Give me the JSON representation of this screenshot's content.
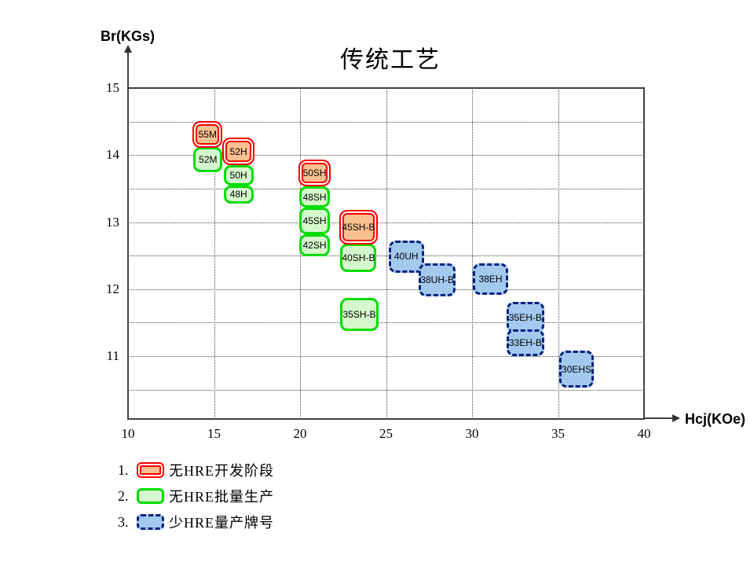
{
  "title": "传统工艺",
  "axes": {
    "x_label": "Hcj(KOe)",
    "y_label": "Br(KGs)",
    "x_ticks": [
      10,
      15,
      20,
      25,
      30,
      35,
      40
    ],
    "y_ticks": [
      15,
      14,
      13,
      12,
      11
    ]
  },
  "legend": {
    "items": [
      {
        "num": "1.",
        "label": "无HRE开发阶段",
        "category": "dev"
      },
      {
        "num": "2.",
        "label": "无HRE批量生产",
        "category": "mass"
      },
      {
        "num": "3.",
        "label": "少HRE量产牌号",
        "category": "low_hre"
      }
    ]
  },
  "colors": {
    "dev_fill": "#FAC090",
    "dev_border": "#FF0000",
    "mass_fill": "#D4F7CC",
    "mass_border": "#00DD00",
    "low_fill": "#A3C9EE",
    "low_border": "#002080"
  },
  "chart_data": {
    "type": "scatter",
    "title": "传统工艺",
    "xlabel": "Hcj(KOe)",
    "ylabel": "Br(KGs)",
    "xlim": [
      10,
      40
    ],
    "ylim": [
      10,
      15
    ],
    "grid": "dotted; vertical every 5 KOe, horizontal every 0.5 KGs",
    "legend_position": "below-left",
    "series": [
      {
        "name": "无HRE开发阶段",
        "grades": [
          "55M",
          "52H",
          "50SH",
          "45SH-B"
        ]
      },
      {
        "name": "无HRE批量生产",
        "grades": [
          "52M",
          "50H",
          "48H",
          "48SH",
          "45SH",
          "42SH",
          "40SH-B",
          "35SH-B"
        ]
      },
      {
        "name": "少HRE量产牌号",
        "grades": [
          "40UH",
          "38UH-B",
          "38EH",
          "35EH-B",
          "33EH-B",
          "30EHS"
        ]
      }
    ],
    "grades": [
      {
        "name": "52M",
        "category": "mass",
        "hcj": [
          13.8,
          15.5
        ],
        "br": [
          13.74,
          14.12
        ]
      },
      {
        "name": "55M",
        "category": "dev",
        "hcj": [
          13.75,
          15.5
        ],
        "br": [
          14.11,
          14.51
        ]
      },
      {
        "name": "50H",
        "category": "mass",
        "hcj": [
          15.55,
          17.3
        ],
        "br": [
          13.55,
          13.85
        ]
      },
      {
        "name": "48H",
        "category": "mass",
        "hcj": [
          15.55,
          17.3
        ],
        "br": [
          13.28,
          13.55
        ]
      },
      {
        "name": "52H",
        "category": "dev",
        "hcj": [
          15.5,
          17.35
        ],
        "br": [
          13.85,
          14.26
        ]
      },
      {
        "name": "48SH",
        "category": "mass",
        "hcj": [
          19.95,
          21.75
        ],
        "br": [
          13.22,
          13.53
        ]
      },
      {
        "name": "45SH",
        "category": "mass",
        "hcj": [
          19.95,
          21.75
        ],
        "br": [
          12.82,
          13.22
        ]
      },
      {
        "name": "42SH",
        "category": "mass",
        "hcj": [
          19.95,
          21.75
        ],
        "br": [
          12.49,
          12.82
        ]
      },
      {
        "name": "50SH",
        "category": "dev",
        "hcj": [
          19.9,
          21.8
        ],
        "br": [
          13.53,
          13.93
        ]
      },
      {
        "name": "40SH-B",
        "category": "mass",
        "hcj": [
          22.35,
          24.45
        ],
        "br": [
          12.26,
          12.68
        ]
      },
      {
        "name": "35SH-B",
        "category": "mass",
        "hcj": [
          22.35,
          24.55
        ],
        "br": [
          11.38,
          11.87
        ]
      },
      {
        "name": "45SH-B",
        "category": "dev",
        "hcj": [
          22.3,
          24.5
        ],
        "br": [
          12.67,
          13.18
        ]
      },
      {
        "name": "40UH",
        "category": "low_hre",
        "hcj": [
          25.15,
          27.2
        ],
        "br": [
          12.24,
          12.73
        ]
      },
      {
        "name": "38UH-B",
        "category": "low_hre",
        "hcj": [
          26.9,
          29.05
        ],
        "br": [
          11.89,
          12.38
        ]
      },
      {
        "name": "38EH",
        "category": "low_hre",
        "hcj": [
          30.05,
          32.1
        ],
        "br": [
          11.91,
          12.38
        ]
      },
      {
        "name": "35EH-B",
        "category": "low_hre",
        "hcj": [
          32.0,
          34.2
        ],
        "br": [
          11.35,
          11.81
        ]
      },
      {
        "name": "33EH-B",
        "category": "low_hre",
        "hcj": [
          32.0,
          34.2
        ],
        "br": [
          11.0,
          11.4
        ]
      },
      {
        "name": "30EHS",
        "category": "low_hre",
        "hcj": [
          35.05,
          37.1
        ],
        "br": [
          10.53,
          11.08
        ]
      }
    ]
  }
}
